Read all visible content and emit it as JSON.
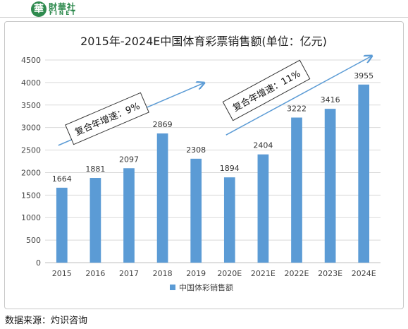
{
  "header": {
    "logo_cn": "財華社",
    "logo_en": "FINET"
  },
  "source_note": "数据来源：灼识咨询",
  "chart_data": {
    "type": "bar",
    "title": "2015年-2024E中国体育彩票销售额(单位：亿元)",
    "categories": [
      "2015",
      "2016",
      "2017",
      "2018",
      "2019",
      "2020E",
      "2021E",
      "2022E",
      "2023E",
      "2024E"
    ],
    "series": [
      {
        "name": "中国体彩销售额",
        "values": [
          1664,
          1881,
          2097,
          2869,
          2308,
          1894,
          2404,
          3222,
          3416,
          3955
        ]
      }
    ],
    "ylim": [
      0,
      4500
    ],
    "yticks": [
      0,
      500,
      1000,
      1500,
      2000,
      2500,
      3000,
      3500,
      4000,
      4500
    ],
    "grid": true,
    "legend": "bottom",
    "bar_color": "#5b9bd5",
    "annotations": [
      {
        "text": "复合年增速：9%",
        "from_index": 0,
        "to_index": 4
      },
      {
        "text": "复合年增速：11%",
        "from_index": 5,
        "to_index": 9
      }
    ]
  }
}
